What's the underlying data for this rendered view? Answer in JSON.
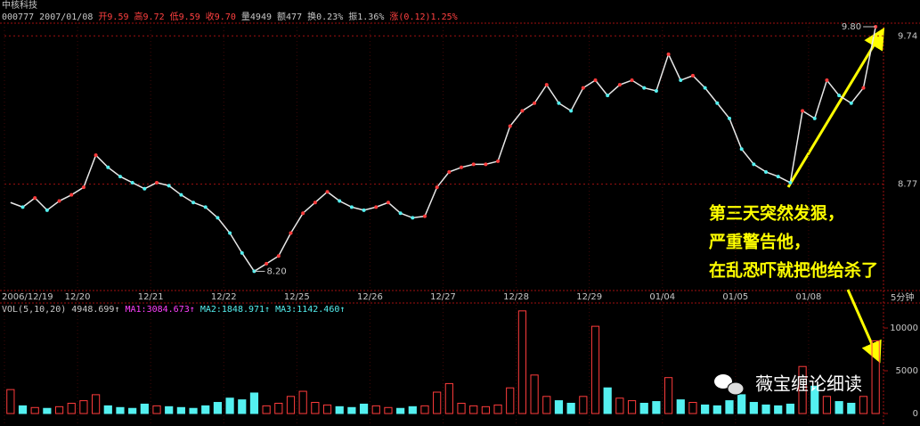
{
  "window": {
    "title": "中核科技",
    "quote": [
      "000777",
      "2007/01/08",
      "开9.59",
      "高9.72",
      "低9.59",
      "收9.70",
      "量4949",
      "额477",
      "换0.23%",
      "振1.36%",
      "涨(0.12)1.25%"
    ],
    "period": "5分钟",
    "annotation_lines": [
      "第三天突然发狠，",
      "严重警告他，",
      "在乱恐吓就把他给杀了"
    ],
    "watermark": "薇宝缠论细读"
  },
  "chart_data": [
    {
      "type": "line",
      "color": "#e8e8e8",
      "up_color": "#ff3c3c",
      "down_color": "#54f0f0",
      "categories": [
        "2006/12/19",
        null,
        null,
        null,
        null,
        null,
        "12/20",
        null,
        null,
        null,
        null,
        null,
        "12/21",
        null,
        null,
        null,
        null,
        null,
        "12/22",
        null,
        null,
        null,
        null,
        null,
        "12/25",
        null,
        null,
        null,
        null,
        null,
        "12/26",
        null,
        null,
        null,
        null,
        null,
        "12/27",
        null,
        null,
        null,
        null,
        null,
        "12/28",
        null,
        null,
        null,
        null,
        null,
        "12/29",
        null,
        null,
        null,
        null,
        null,
        "01/04",
        null,
        null,
        null,
        null,
        null,
        "01/05",
        null,
        null,
        null,
        null,
        null,
        "01/08",
        null,
        null,
        null,
        null,
        null
      ],
      "values": [
        8.65,
        8.62,
        8.68,
        8.6,
        8.66,
        8.7,
        8.75,
        8.96,
        8.88,
        8.82,
        8.78,
        8.74,
        8.78,
        8.76,
        8.7,
        8.65,
        8.62,
        8.55,
        8.45,
        8.32,
        8.2,
        8.25,
        8.3,
        8.45,
        8.58,
        8.65,
        8.72,
        8.66,
        8.62,
        8.6,
        8.62,
        8.65,
        8.58,
        8.55,
        8.56,
        8.75,
        8.85,
        8.88,
        8.9,
        8.9,
        8.92,
        9.15,
        9.25,
        9.3,
        9.42,
        9.3,
        9.25,
        9.4,
        9.45,
        9.35,
        9.42,
        9.45,
        9.4,
        9.38,
        9.62,
        9.45,
        9.48,
        9.4,
        9.3,
        9.2,
        9.0,
        8.9,
        8.85,
        8.82,
        8.78,
        9.25,
        9.2,
        9.45,
        9.35,
        9.3,
        9.4,
        9.8
      ],
      "ylim": [
        8.08,
        9.87
      ],
      "yticks": [
        9.74,
        8.77
      ],
      "annotations": [
        "9.80",
        "8.20"
      ]
    },
    {
      "type": "bar",
      "title": "VOL(5,10,20)",
      "legend_items": [
        "4948.699↑",
        "MA1:3084.673↑",
        "MA2:1848.971↑",
        "MA3:1142.460↑"
      ],
      "values": [
        2800,
        900,
        700,
        600,
        800,
        1200,
        1500,
        2200,
        900,
        700,
        600,
        1100,
        900,
        800,
        700,
        600,
        900,
        1300,
        1800,
        1600,
        2400,
        900,
        1200,
        2000,
        2600,
        1300,
        1000,
        800,
        700,
        1100,
        900,
        700,
        600,
        800,
        900,
        2500,
        3500,
        1200,
        900,
        800,
        1000,
        3000,
        12000,
        4500,
        2000,
        1500,
        1200,
        2000,
        10200,
        3000,
        1800,
        1500,
        1200,
        1400,
        4200,
        1600,
        1300,
        1000,
        900,
        1500,
        2200,
        1300,
        1000,
        900,
        1100,
        5500,
        3200,
        2000,
        1400,
        1200,
        2000,
        8500
      ],
      "ylim": [
        0,
        12400
      ],
      "yticks": [
        10000,
        5000,
        0
      ]
    }
  ]
}
